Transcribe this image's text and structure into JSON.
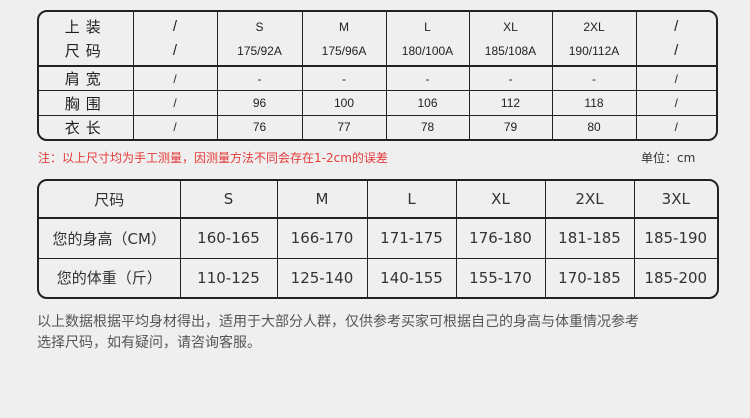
{
  "garment_table": {
    "header": {
      "label_line1": "上装",
      "label_line2": "尺码",
      "cols": [
        {
          "size": "/",
          "spec": "/"
        },
        {
          "size": "S",
          "spec": "175/92A"
        },
        {
          "size": "M",
          "spec": "175/96A"
        },
        {
          "size": "L",
          "spec": "180/100A"
        },
        {
          "size": "XL",
          "spec": "185/108A"
        },
        {
          "size": "2XL",
          "spec": "190/112A"
        },
        {
          "size": "/",
          "spec": "/"
        }
      ]
    },
    "rows": [
      {
        "label": "肩宽",
        "values": [
          "/",
          "-",
          "-",
          "-",
          "-",
          "-",
          "/"
        ]
      },
      {
        "label": "胸围",
        "values": [
          "/",
          "96",
          "100",
          "106",
          "112",
          "118",
          "/"
        ]
      },
      {
        "label": "衣长",
        "values": [
          "/",
          "76",
          "77",
          "78",
          "79",
          "80",
          "/"
        ]
      }
    ]
  },
  "note": "注：以上尺寸均为手工测量，因测量方法不同会存在1-2cm的误差",
  "unit": "单位：cm",
  "recommend_table": {
    "rows": [
      {
        "label": "尺码",
        "values": [
          "S",
          "M",
          "L",
          "XL",
          "2XL",
          "3XL"
        ]
      },
      {
        "label": "您的身高（CM）",
        "values": [
          "160-165",
          "166-170",
          "171-175",
          "176-180",
          "181-185",
          "185-190"
        ]
      },
      {
        "label": "您的体重（斤）",
        "values": [
          "110-125",
          "125-140",
          "140-155",
          "155-170",
          "170-185",
          "185-200"
        ]
      }
    ]
  },
  "disclaimer_line1": "以上数据根据平均身材得出，适用于大部分人群，仅供参考买家可根据自己的身高与体重情况参考",
  "disclaimer_line2": "选择尺码，如有疑问，请咨询客服。",
  "colors": {
    "note_red": "#e53a3a",
    "background": "#efefef",
    "border": "#222222"
  }
}
